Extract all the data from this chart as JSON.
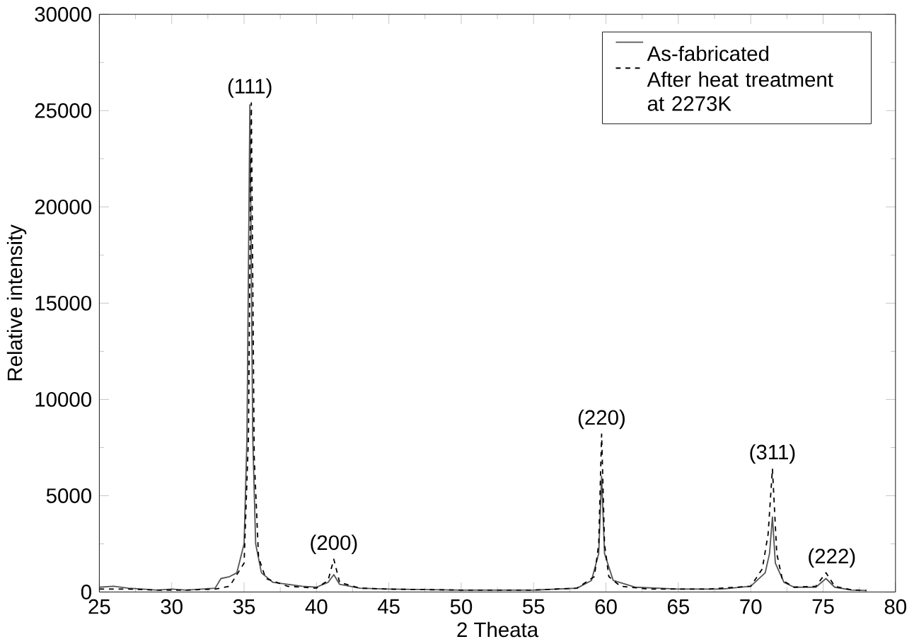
{
  "chart_data": {
    "type": "line",
    "xlabel": "2 Theata",
    "ylabel": "Relative intensity",
    "xlim": [
      25,
      80
    ],
    "ylim": [
      0,
      30000
    ],
    "xticks": [
      25,
      30,
      35,
      40,
      45,
      50,
      55,
      60,
      65,
      70,
      75,
      80
    ],
    "yticks": [
      0,
      5000,
      10000,
      15000,
      20000,
      25000,
      30000
    ],
    "legend": "top right",
    "marker": "none",
    "grid": false,
    "series": [
      {
        "name": "As-fabricated",
        "color": "#555555",
        "line_style": "solid",
        "x": [
          25,
          26,
          27,
          28,
          29,
          30,
          31,
          32,
          33,
          33.4,
          34,
          34.5,
          35,
          35.2,
          35.4,
          35.6,
          35.8,
          36.2,
          37,
          38,
          39,
          40,
          40.8,
          41.2,
          41.6,
          43,
          45,
          50,
          55,
          58,
          59,
          59.5,
          59.7,
          59.9,
          60.5,
          62,
          65,
          68,
          70,
          71,
          71.3,
          71.5,
          71.7,
          72.3,
          73,
          74.5,
          75.2,
          75.8,
          77,
          78
        ],
        "values": [
          250,
          300,
          200,
          150,
          100,
          150,
          100,
          150,
          200,
          700,
          800,
          1000,
          2500,
          8000,
          25300,
          8000,
          2500,
          1000,
          500,
          400,
          300,
          250,
          500,
          900,
          400,
          200,
          150,
          100,
          100,
          200,
          600,
          2000,
          6000,
          2000,
          600,
          250,
          150,
          150,
          300,
          1000,
          2000,
          3900,
          1500,
          500,
          250,
          250,
          700,
          250,
          100,
          80
        ]
      },
      {
        "name": "After heat treatment at 2273K",
        "color": "#000000",
        "line_style": "dashed",
        "x": [
          25,
          27,
          29,
          31,
          33,
          34,
          35,
          35.3,
          35.5,
          35.7,
          36,
          36.5,
          38,
          40,
          40.8,
          41.2,
          41.6,
          43,
          45,
          50,
          55,
          58,
          59.2,
          59.5,
          59.7,
          59.9,
          60.2,
          61,
          63,
          67,
          70,
          70.8,
          71.2,
          71.5,
          71.8,
          72.2,
          73,
          74.5,
          75.2,
          75.8,
          77,
          78
        ],
        "values": [
          150,
          150,
          100,
          100,
          150,
          300,
          1500,
          8000,
          25400,
          7000,
          1800,
          700,
          300,
          200,
          600,
          1700,
          500,
          200,
          150,
          100,
          100,
          200,
          800,
          2500,
          8200,
          2500,
          800,
          300,
          150,
          150,
          300,
          1200,
          3000,
          6400,
          2000,
          600,
          250,
          300,
          1000,
          300,
          100,
          80
        ]
      }
    ],
    "annotations": [
      {
        "text": "(111)",
        "x": 35.4,
        "y": 25400
      },
      {
        "text": "(200)",
        "x": 41.2,
        "y": 1700
      },
      {
        "text": "(220)",
        "x": 59.7,
        "y": 8200
      },
      {
        "text": "(311)",
        "x": 71.5,
        "y": 6400
      },
      {
        "text": "(222)",
        "x": 75.6,
        "y": 1000
      }
    ]
  }
}
